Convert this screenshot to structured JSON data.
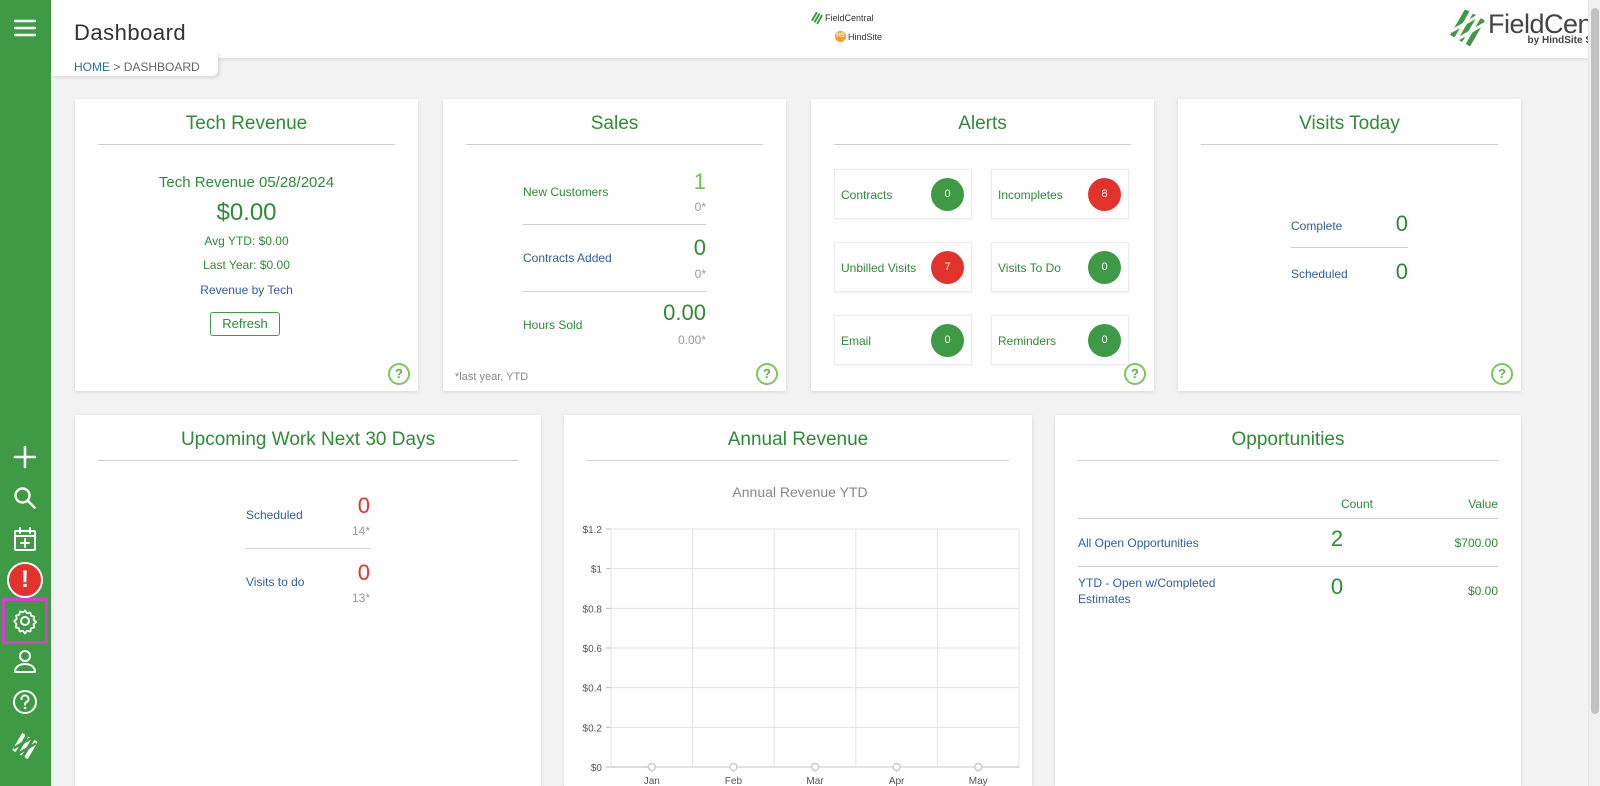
{
  "app": {
    "page_title": "Dashboard"
  },
  "breadcrumb": {
    "home": "HOME",
    "sep": ">",
    "current": "DASHBOARD"
  },
  "header_logo": {
    "fc_text": "FieldCentral",
    "hs_text": "HindSite",
    "hs_badge": "HS"
  },
  "brand": {
    "name": "FieldCentral",
    "byline": "by HindSite Software"
  },
  "sidebar": {
    "items": [
      {
        "name": "menu",
        "icon": "hamburger-menu-icon"
      },
      {
        "name": "add",
        "icon": "plus-icon"
      },
      {
        "name": "search",
        "icon": "search-icon"
      },
      {
        "name": "calendar-add",
        "icon": "calendar-plus-icon"
      },
      {
        "name": "alerts",
        "icon": "exclamation-alert-icon",
        "glyph": "!"
      },
      {
        "name": "settings",
        "icon": "gear-icon"
      },
      {
        "name": "user",
        "icon": "user-icon"
      },
      {
        "name": "help",
        "icon": "help-circle-icon"
      },
      {
        "name": "brand-mark",
        "icon": "fieldcentral-logo-icon"
      }
    ]
  },
  "help_glyph": "?",
  "tech_revenue": {
    "title": "Tech Revenue",
    "subtitle": "Tech Revenue 05/28/2024",
    "amount": "$0.00",
    "avg_ytd": "Avg YTD: $0.00",
    "last_year": "Last Year: $0.00",
    "link": "Revenue by Tech",
    "refresh": "Refresh"
  },
  "sales": {
    "title": "Sales",
    "rows": [
      {
        "label": "New Customers",
        "value": "1",
        "prev": "0*"
      },
      {
        "label": "Contracts Added",
        "value": "0",
        "prev": "0*"
      },
      {
        "label": "Hours Sold",
        "value": "0.00",
        "prev": "0.00*"
      }
    ],
    "footnote": "*last year, YTD"
  },
  "alerts": {
    "title": "Alerts",
    "items": [
      {
        "label": "Contracts",
        "count": "0",
        "status": "ok"
      },
      {
        "label": "Incompletes",
        "count": "8",
        "status": "warn"
      },
      {
        "label": "Unbilled Visits",
        "count": "7",
        "status": "warn"
      },
      {
        "label": "Visits To Do",
        "count": "0",
        "status": "ok"
      },
      {
        "label": "Email",
        "count": "0",
        "status": "ok"
      },
      {
        "label": "Reminders",
        "count": "0",
        "status": "ok"
      }
    ]
  },
  "visits_today": {
    "title": "Visits Today",
    "rows": [
      {
        "label": "Complete",
        "value": "0"
      },
      {
        "label": "Scheduled",
        "value": "0"
      }
    ]
  },
  "upcoming": {
    "title": "Upcoming Work Next 30 Days",
    "rows": [
      {
        "label": "Scheduled",
        "value": "0",
        "prev": "14*"
      },
      {
        "label": "Visits to do",
        "value": "0",
        "prev": "13*"
      }
    ]
  },
  "annual_revenue": {
    "title": "Annual Revenue"
  },
  "opportunities": {
    "title": "Opportunities",
    "headers": {
      "count": "Count",
      "value": "Value"
    },
    "rows": [
      {
        "label": "All Open Opportunities",
        "count": "2",
        "value": "$700.00"
      },
      {
        "label_line1": "YTD - Open w/Completed",
        "label_line2": "Estimates",
        "count": "0",
        "value": "$0.00"
      }
    ]
  },
  "colors": {
    "green": "#3e9a44",
    "title_green": "#2e8b36",
    "red": "#e2322c",
    "link_blue": "#2f5fa0",
    "highlight": "#d43fd3"
  },
  "chart_data": {
    "type": "line",
    "title": "Annual Revenue YTD",
    "categories": [
      "Jan",
      "Feb",
      "Mar",
      "Apr",
      "May"
    ],
    "values": [
      0,
      0,
      0,
      0,
      0
    ],
    "ylim": [
      0,
      1.2
    ],
    "yticks": [
      0,
      0.2,
      0.4,
      0.6,
      0.8,
      1,
      1.2
    ],
    "ytick_labels": [
      "$0",
      "$0.2",
      "$0.4",
      "$0.6",
      "$0.8",
      "$1",
      "$1.2"
    ],
    "grid": true
  }
}
